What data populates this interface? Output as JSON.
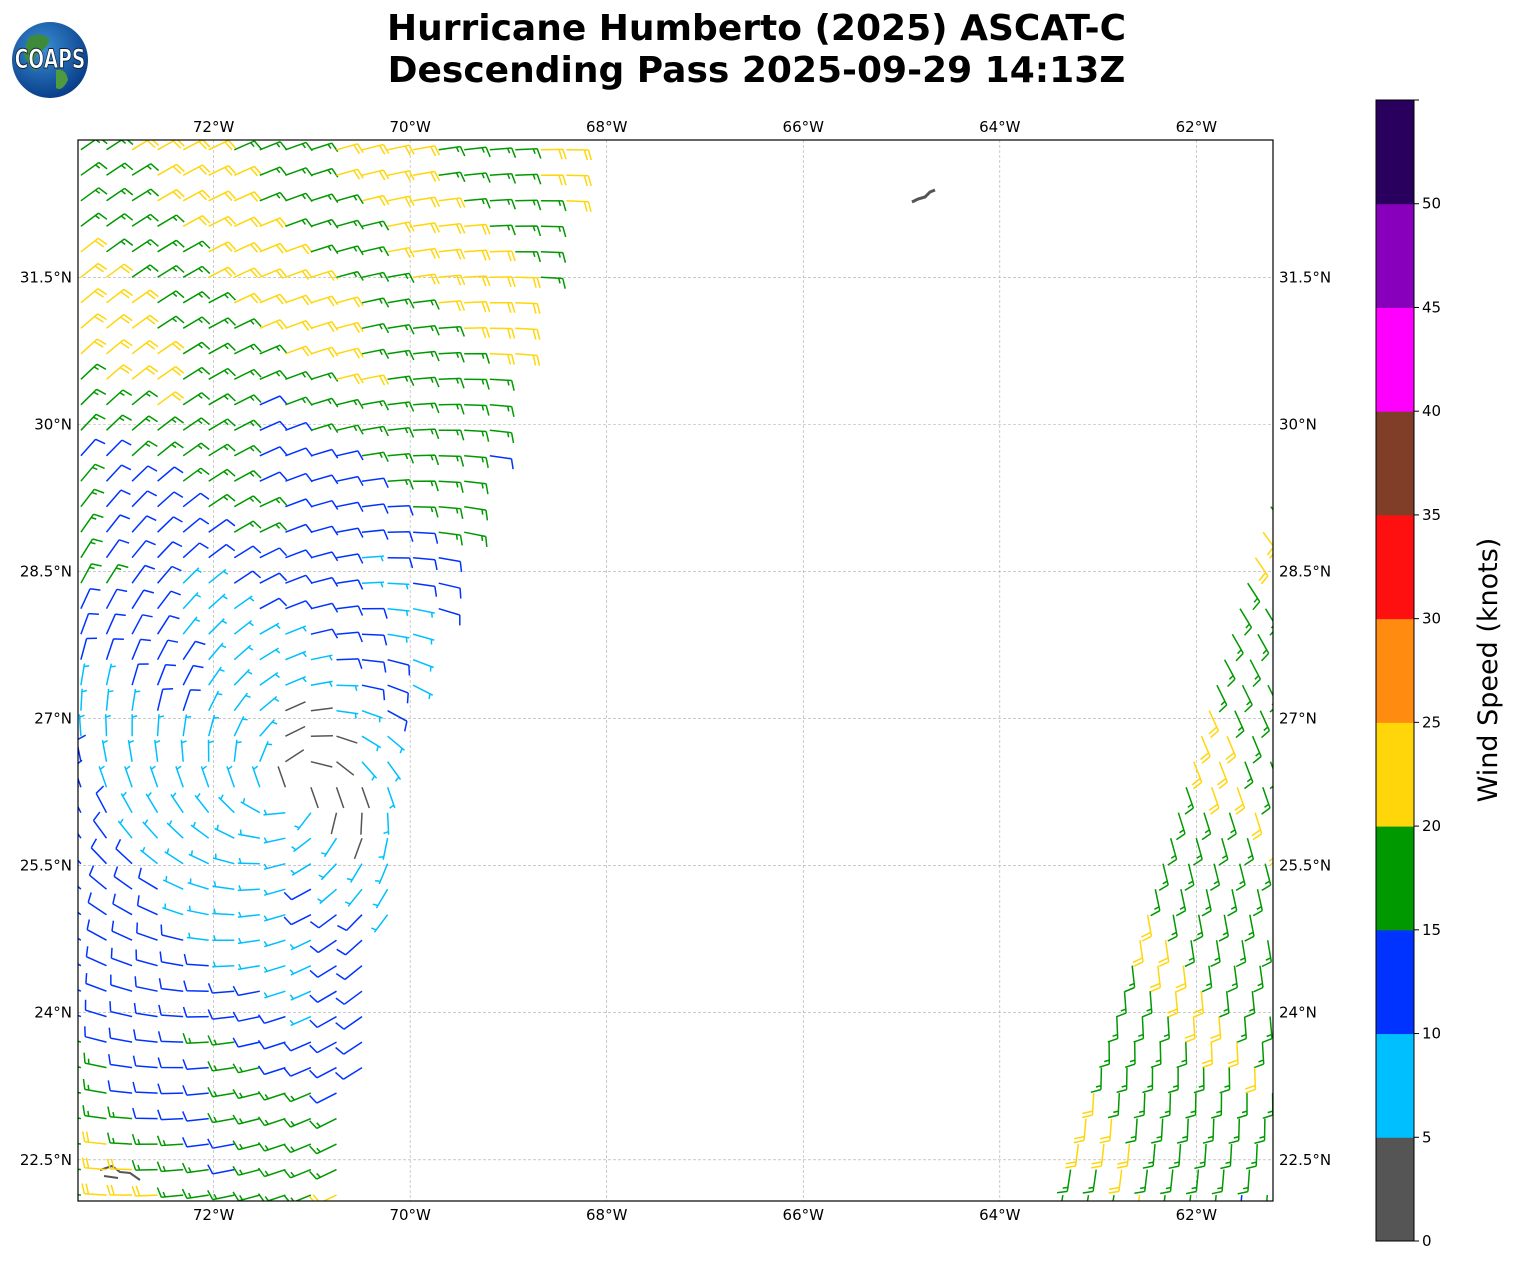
{
  "header": {
    "title_line1": "Hurricane Humberto (2025) ASCAT-C",
    "title_line2": "Descending Pass 2025-09-29 14:13Z",
    "logo_text": "COAPS"
  },
  "map": {
    "lon_range": [
      -73.38,
      -61.22
    ],
    "lat_range": [
      22.08,
      32.9
    ],
    "lon_ticks": [
      -72,
      -70,
      -68,
      -66,
      -64,
      -62
    ],
    "lon_tick_labels": [
      "72°W",
      "70°W",
      "68°W",
      "66°W",
      "64°W",
      "62°W"
    ],
    "lat_ticks": [
      22.5,
      24,
      25.5,
      27,
      28.5,
      30,
      31.5
    ],
    "lat_tick_labels": [
      "22.5°N",
      "24°N",
      "25.5°N",
      "27°N",
      "28.5°N",
      "30°N",
      "31.5°N"
    ],
    "storm_center": {
      "lat": 26.3,
      "lon": -71.2
    },
    "barb_spacing_deg": 0.26
  },
  "colorbar": {
    "label": "Wind Speed (knots)",
    "ticks": [
      "0",
      "5",
      "10",
      "15",
      "20",
      "25",
      "30",
      "35",
      "40",
      "45",
      "50"
    ],
    "range": [
      0,
      55
    ],
    "colors": [
      "#555555",
      "#00bfff",
      "#0033ff",
      "#009900",
      "#ffd60a",
      "#ff8c10",
      "#ff1010",
      "#803d28",
      "#ff00ff",
      "#8800bb",
      "#2a005e"
    ]
  }
}
